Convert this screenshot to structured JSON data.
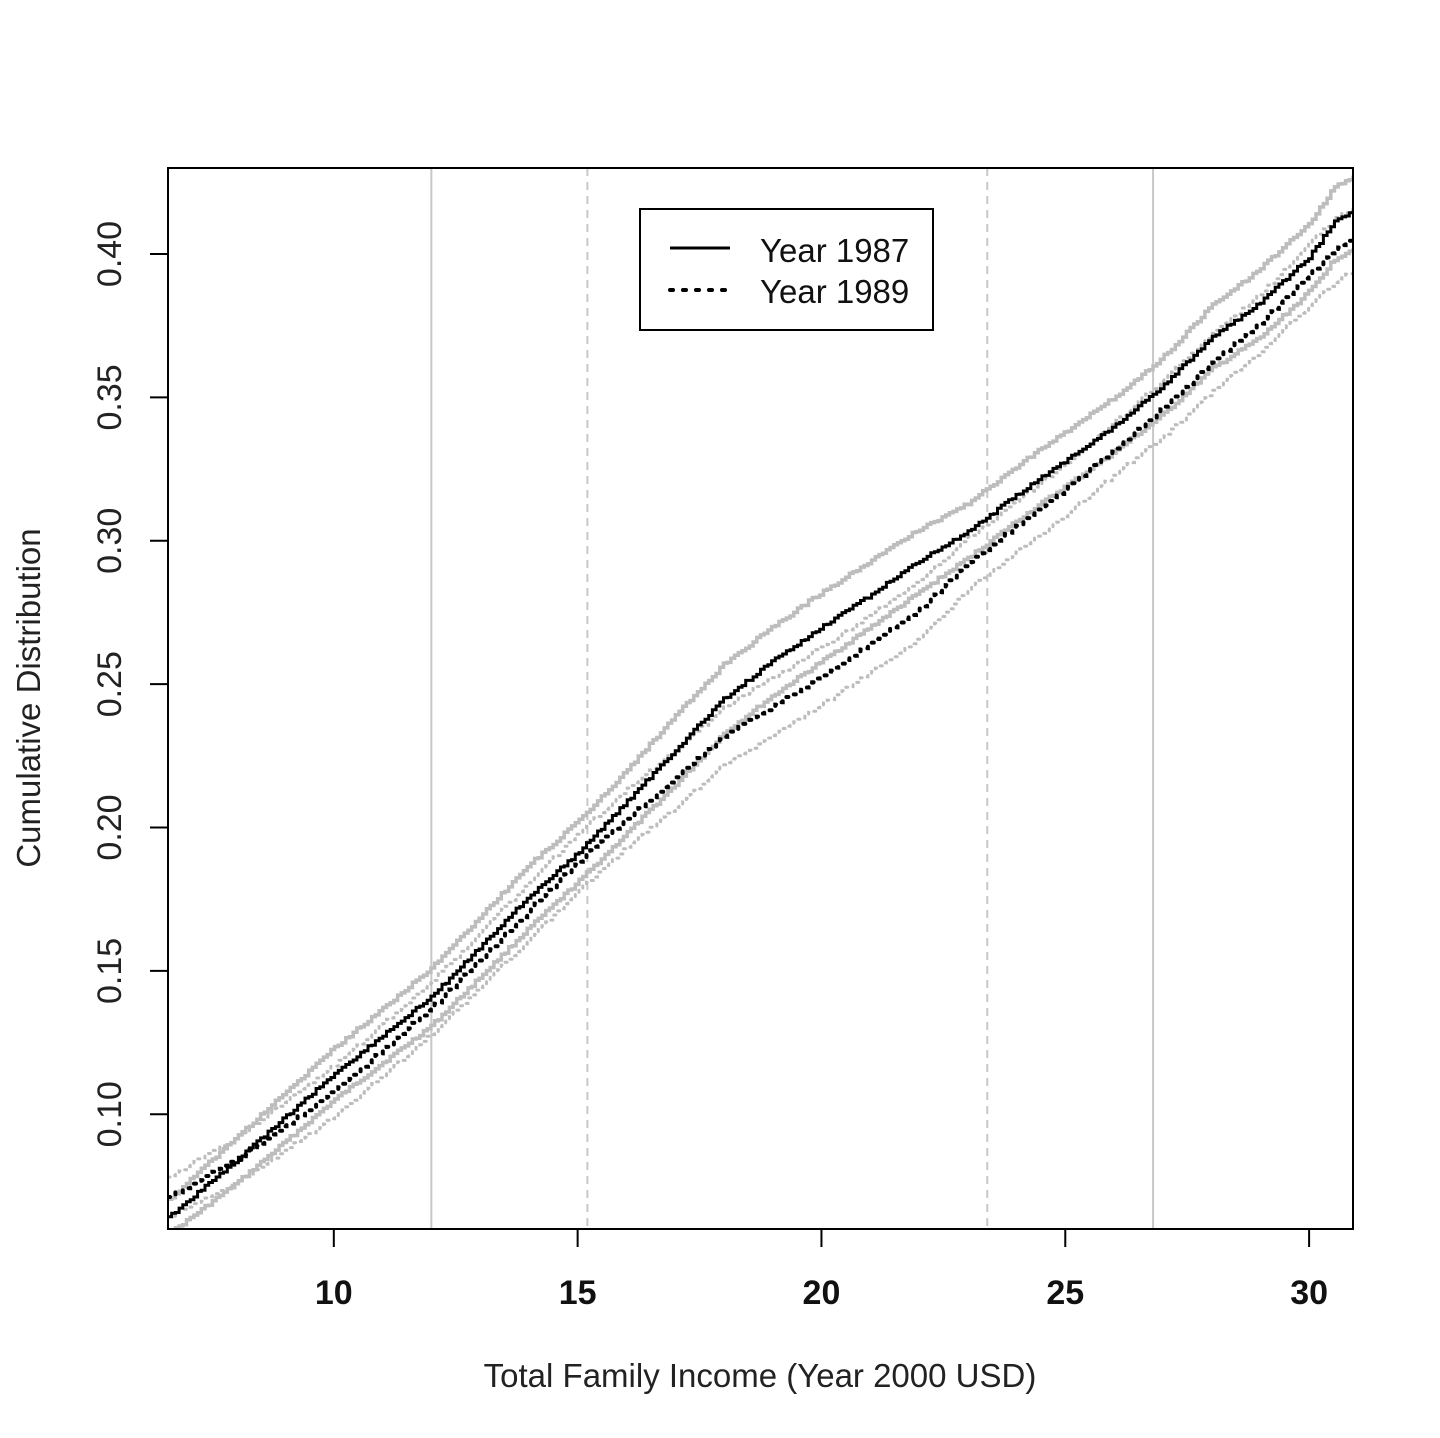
{
  "chart_data": {
    "type": "line",
    "title": "",
    "xlabel": "Total Family Income (Year 2000 USD)",
    "ylabel": "Cumulative Distribution",
    "xlim": [
      6.6,
      30.9
    ],
    "ylim": [
      0.06,
      0.43
    ],
    "x_ticks": [
      10,
      15,
      20,
      25,
      30
    ],
    "x_tick_labels": [
      "10",
      "15",
      "20",
      "25",
      "30"
    ],
    "y_ticks": [
      0.1,
      0.15,
      0.2,
      0.25,
      0.3,
      0.35,
      0.4
    ],
    "y_tick_labels": [
      "0.10",
      "0.15",
      "0.20",
      "0.25",
      "0.30",
      "0.35",
      "0.40"
    ],
    "grid": false,
    "legend_position": "top-center",
    "reference_lines": [
      {
        "x": 12.0,
        "style": "solid",
        "color": "#c8c8c8"
      },
      {
        "x": 15.2,
        "style": "dashed",
        "color": "#c8c8c8"
      },
      {
        "x": 23.4,
        "style": "dashed",
        "color": "#c8c8c8"
      },
      {
        "x": 26.8,
        "style": "solid",
        "color": "#c8c8c8"
      }
    ],
    "x": [
      6.6,
      8,
      10,
      12,
      14,
      15,
      16,
      17,
      18,
      19,
      20,
      21,
      22,
      23,
      24,
      25,
      26,
      27,
      28,
      29,
      30,
      30.5,
      30.9
    ],
    "series": [
      {
        "name": "Year 1987",
        "style": "solid",
        "color": "#000000",
        "values": [
          0.064,
          0.084,
          0.114,
          0.141,
          0.176,
          0.191,
          0.209,
          0.227,
          0.245,
          0.258,
          0.27,
          0.281,
          0.293,
          0.303,
          0.316,
          0.328,
          0.34,
          0.354,
          0.371,
          0.383,
          0.399,
          0.411,
          0.415
        ],
        "ci_lower": [
          0.058,
          0.076,
          0.105,
          0.131,
          0.165,
          0.181,
          0.198,
          0.215,
          0.233,
          0.246,
          0.258,
          0.27,
          0.282,
          0.294,
          0.307,
          0.319,
          0.331,
          0.344,
          0.36,
          0.371,
          0.387,
          0.398,
          0.402
        ],
        "ci_upper": [
          0.07,
          0.092,
          0.123,
          0.151,
          0.187,
          0.202,
          0.22,
          0.239,
          0.257,
          0.27,
          0.282,
          0.293,
          0.304,
          0.313,
          0.326,
          0.338,
          0.35,
          0.364,
          0.382,
          0.395,
          0.411,
          0.423,
          0.427
        ]
      },
      {
        "name": "Year 1989",
        "style": "dotted",
        "color": "#000000",
        "values": [
          0.071,
          0.084,
          0.108,
          0.137,
          0.171,
          0.188,
          0.203,
          0.217,
          0.232,
          0.242,
          0.253,
          0.264,
          0.276,
          0.292,
          0.305,
          0.318,
          0.332,
          0.346,
          0.362,
          0.376,
          0.393,
          0.401,
          0.405
        ],
        "ci_lower": [
          0.064,
          0.076,
          0.099,
          0.128,
          0.161,
          0.178,
          0.193,
          0.207,
          0.222,
          0.232,
          0.243,
          0.254,
          0.266,
          0.283,
          0.296,
          0.309,
          0.323,
          0.336,
          0.352,
          0.366,
          0.382,
          0.39,
          0.394
        ],
        "ci_upper": [
          0.078,
          0.092,
          0.117,
          0.146,
          0.181,
          0.198,
          0.213,
          0.227,
          0.242,
          0.252,
          0.263,
          0.274,
          0.286,
          0.301,
          0.314,
          0.327,
          0.341,
          0.356,
          0.372,
          0.386,
          0.404,
          0.412,
          0.416
        ]
      }
    ]
  }
}
